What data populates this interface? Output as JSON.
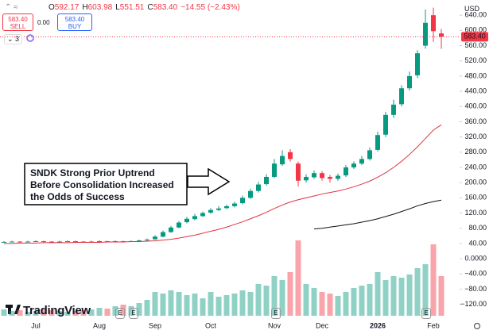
{
  "header": {
    "ohlc": [
      {
        "key": "O",
        "value": "592.17"
      },
      {
        "key": "H",
        "value": "603.98"
      },
      {
        "key": "L",
        "value": "551.51"
      },
      {
        "key": "C",
        "value": "583.40"
      }
    ],
    "change": "−14.55 (−2.43%)",
    "sell_price": "583.40",
    "sell_label": "SELL",
    "spread": "0.00",
    "buy_price": "583.40",
    "buy_label": "BUY",
    "indicators_count": "3",
    "currency": "USD",
    "brand": "TradingView"
  },
  "chart_data": {
    "type": "candlestick",
    "annotation": "SNDK Strong Prior Uptrend Before Consolidation Increased the Odds of Success",
    "categories": [
      null,
      null,
      null,
      null,
      "Jul",
      null,
      null,
      null,
      null,
      null,
      null,
      null,
      "Aug",
      null,
      null,
      null,
      null,
      null,
      null,
      "Sep",
      null,
      null,
      null,
      null,
      null,
      null,
      "Oct",
      null,
      null,
      null,
      null,
      null,
      null,
      null,
      "Nov",
      null,
      null,
      null,
      null,
      null,
      "Dec",
      null,
      null,
      null,
      null,
      null,
      null,
      "2026",
      null,
      null,
      null,
      null,
      null,
      null,
      "Feb",
      null
    ],
    "open": [
      43,
      44,
      45,
      44,
      45,
      46,
      45,
      44,
      45,
      46,
      45,
      44,
      45,
      46,
      45,
      46,
      45,
      46,
      48,
      51,
      58,
      70,
      82,
      96,
      104,
      112,
      121,
      128,
      133,
      138,
      146,
      160,
      178,
      196,
      215,
      248,
      280,
      250,
      206,
      214,
      225,
      215,
      210,
      219,
      240,
      250,
      262,
      286,
      326,
      378,
      406,
      448,
      482,
      560,
      640,
      592.17
    ],
    "high": [
      46,
      47,
      46,
      47,
      48,
      47,
      46,
      47,
      48,
      47,
      46,
      47,
      48,
      47,
      48,
      47,
      48,
      50,
      53,
      62,
      74,
      86,
      99,
      110,
      118,
      124,
      133,
      138,
      142,
      150,
      166,
      184,
      202,
      222,
      262,
      285,
      288,
      255,
      222,
      232,
      230,
      220,
      224,
      246,
      256,
      270,
      292,
      334,
      386,
      418,
      456,
      492,
      548,
      655,
      660,
      603.98
    ],
    "low": [
      42,
      43,
      42,
      43,
      44,
      43,
      42,
      43,
      44,
      43,
      42,
      43,
      44,
      43,
      44,
      43,
      44,
      45,
      47,
      50,
      56,
      68,
      80,
      93,
      101,
      109,
      118,
      125,
      130,
      135,
      143,
      157,
      174,
      192,
      212,
      244,
      255,
      190,
      200,
      210,
      205,
      200,
      205,
      215,
      236,
      246,
      258,
      282,
      320,
      370,
      400,
      442,
      475,
      552,
      570,
      551.51
    ],
    "close": [
      44,
      45,
      44,
      45,
      46,
      45,
      44,
      45,
      46,
      45,
      44,
      45,
      46,
      45,
      46,
      45,
      46,
      48,
      50,
      58,
      70,
      82,
      95,
      105,
      112,
      120,
      128,
      132,
      138,
      145,
      160,
      178,
      195,
      215,
      250,
      270,
      262,
      205,
      215,
      225,
      212,
      210,
      218,
      240,
      250,
      262,
      285,
      325,
      378,
      405,
      448,
      480,
      540,
      620,
      598,
      583.4
    ],
    "volume": [
      8,
      6,
      7,
      5,
      6,
      8,
      7,
      6,
      5,
      6,
      7,
      8,
      10,
      9,
      12,
      14,
      12,
      16,
      20,
      30,
      28,
      32,
      30,
      26,
      28,
      22,
      30,
      24,
      26,
      28,
      32,
      30,
      40,
      38,
      50,
      45,
      55,
      95,
      40,
      35,
      30,
      28,
      25,
      30,
      35,
      38,
      40,
      55,
      45,
      50,
      48,
      52,
      60,
      65,
      90,
      50
    ],
    "volume_lim": [
      0,
      100
    ],
    "overlays": [
      {
        "color": "#e0323f",
        "values": [
          40,
          40,
          41,
          41,
          41,
          42,
          42,
          42,
          42,
          43,
          43,
          43,
          43,
          44,
          44,
          44,
          45,
          45,
          46,
          47,
          49,
          51,
          54,
          58,
          62,
          67,
          72,
          77,
          83,
          90,
          97,
          105,
          113,
          122,
          132,
          141,
          149,
          155,
          160,
          165,
          170,
          174,
          178,
          183,
          189,
          196,
          204,
          214,
          226,
          240,
          256,
          274,
          294,
          316,
          338,
          352
        ]
      },
      {
        "color": "#111111",
        "values": [
          null,
          null,
          null,
          null,
          null,
          null,
          null,
          null,
          null,
          null,
          null,
          null,
          null,
          null,
          null,
          null,
          null,
          null,
          null,
          null,
          null,
          null,
          null,
          null,
          null,
          null,
          null,
          null,
          null,
          null,
          null,
          null,
          null,
          null,
          null,
          null,
          null,
          null,
          null,
          78,
          80,
          83,
          86,
          89,
          92,
          96,
          100,
          105,
          111,
          117,
          124,
          131,
          139,
          145,
          150,
          154
        ]
      }
    ],
    "up_color": "#089981",
    "down_color": "#f23645",
    "last_price_label": "583.40",
    "events": [
      "E",
      "E",
      "E",
      "E"
    ],
    "ylim": [
      -150,
      680
    ],
    "yticks": [
      {
        "value": 640,
        "label": "640.00"
      },
      {
        "value": 600,
        "label": "600.00"
      },
      {
        "value": 560,
        "label": "560.00"
      },
      {
        "value": 520,
        "label": "520.00"
      },
      {
        "value": 480,
        "label": "480.00"
      },
      {
        "value": 440,
        "label": "440.00"
      },
      {
        "value": 400,
        "label": "400.00"
      },
      {
        "value": 360,
        "label": "360.00"
      },
      {
        "value": 320,
        "label": "320.00"
      },
      {
        "value": 280,
        "label": "280.00"
      },
      {
        "value": 240,
        "label": "240.00"
      },
      {
        "value": 200,
        "label": "200.00"
      },
      {
        "value": 160,
        "label": "160.00"
      },
      {
        "value": 120,
        "label": "120.00"
      },
      {
        "value": 80,
        "label": "80.00"
      },
      {
        "value": 40,
        "label": "40.00"
      },
      {
        "value": 0,
        "label": "0.0000"
      },
      {
        "value": -40,
        "label": "−40.00"
      },
      {
        "value": -80,
        "label": "−80.00"
      },
      {
        "value": -120,
        "label": "−120.00"
      }
    ],
    "grid": false
  }
}
